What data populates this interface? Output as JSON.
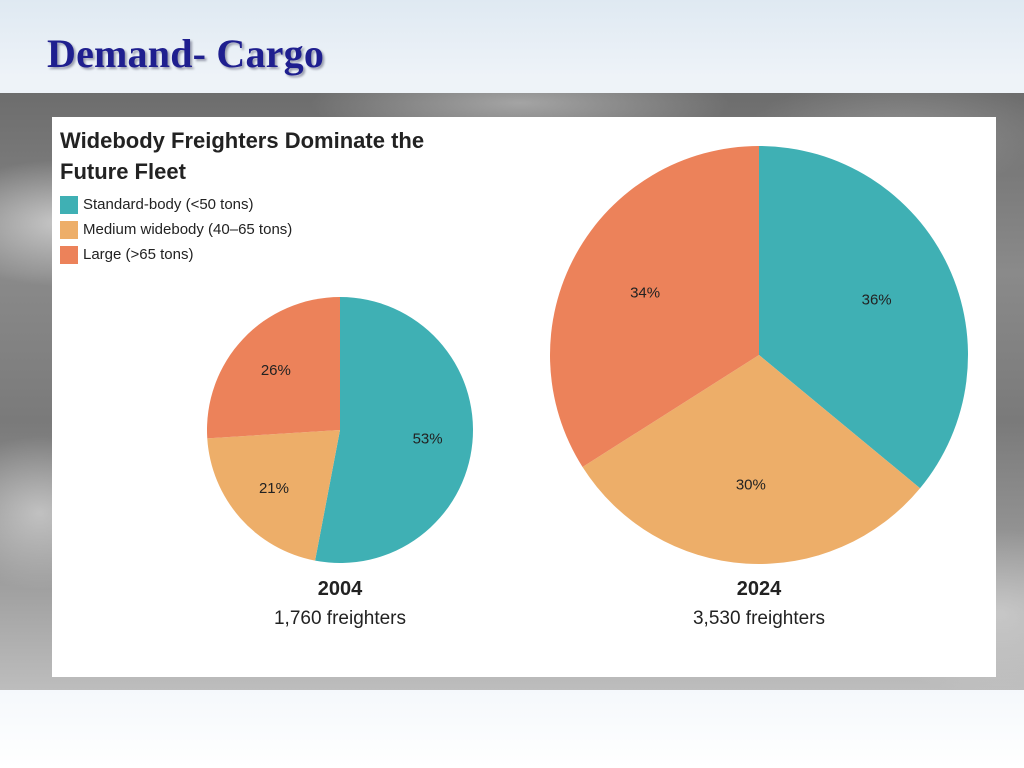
{
  "slide": {
    "title": "Demand- Cargo"
  },
  "colors": {
    "standard": "#3fb0b4",
    "medium": "#edae69",
    "large": "#ec825a"
  },
  "chart_data": [
    {
      "type": "pie",
      "title": "Widebody Freighters Dominate the Future Fleet",
      "legend_position": "top-left",
      "legend": [
        {
          "name": "Standard-body (<50 tons)",
          "color": "#3fb0b4"
        },
        {
          "name": "Medium widebody (40–65 tons)",
          "color": "#edae69"
        },
        {
          "name": "Large (>65 tons)",
          "color": "#ec825a"
        }
      ],
      "pies": [
        {
          "year": "2004",
          "caption": "1,760 freighters",
          "slices": [
            {
              "name": "Standard-body (<50 tons)",
              "value": 53,
              "label": "53%",
              "color": "#3fb0b4"
            },
            {
              "name": "Medium widebody (40–65 tons)",
              "value": 21,
              "label": "21%",
              "color": "#edae69"
            },
            {
              "name": "Large (>65 tons)",
              "value": 26,
              "label": "26%",
              "color": "#ec825a"
            }
          ]
        },
        {
          "year": "2024",
          "caption": "3,530 freighters",
          "slices": [
            {
              "name": "Standard-body (<50 tons)",
              "value": 36,
              "label": "36%",
              "color": "#3fb0b4"
            },
            {
              "name": "Medium widebody (40–65 tons)",
              "value": 30,
              "label": "30%",
              "color": "#edae69"
            },
            {
              "name": "Large (>65 tons)",
              "value": 34,
              "label": "34%",
              "color": "#ec825a"
            }
          ]
        }
      ]
    }
  ]
}
